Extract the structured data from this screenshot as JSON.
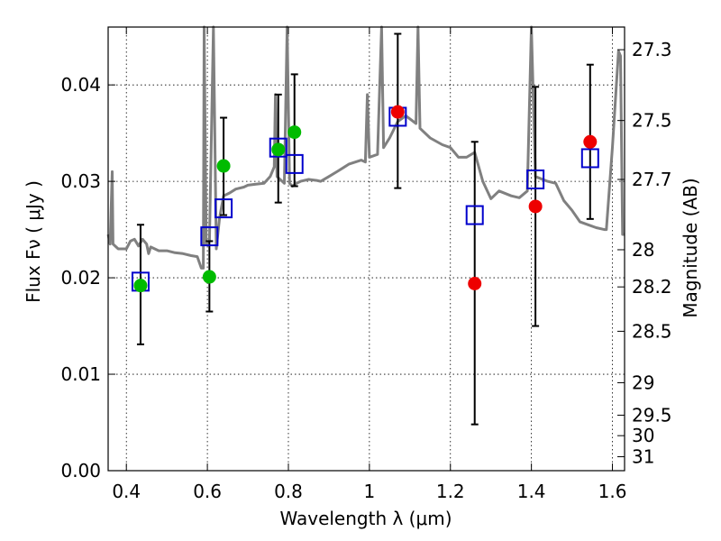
{
  "chart_data": {
    "type": "scatter",
    "xlabel": "Wavelength  λ (μm)",
    "ylabel": "Flux  Fν  ( μJy )",
    "y2label": "Magnitude (AB)",
    "xlim": [
      0.355,
      1.63
    ],
    "ylim": [
      0.0,
      0.046
    ],
    "x_ticks": [
      "0.4",
      "0.6",
      "0.8",
      "1",
      "1.2",
      "1.4",
      "1.6"
    ],
    "y_ticks": [
      "0.00",
      "0.01",
      "0.02",
      "0.03",
      "0.04"
    ],
    "magnitude_ticks": [
      "27.3",
      "27.5",
      "27.7",
      "28",
      "28.2",
      "28.5",
      "29",
      "29.5",
      "30",
      "31"
    ],
    "grid": true,
    "colors": {
      "model": "#808080",
      "squares": "#0000cc",
      "green": "#00bb00",
      "red": "#ee0000",
      "errorbars": "#000000"
    },
    "series": [
      {
        "marker": "square",
        "points": [
          {
            "x": 0.435,
            "y": 0.0196
          },
          {
            "x": 0.605,
            "y": 0.0243
          },
          {
            "x": 0.64,
            "y": 0.0272
          },
          {
            "x": 0.775,
            "y": 0.0335
          },
          {
            "x": 0.815,
            "y": 0.0318
          },
          {
            "x": 1.07,
            "y": 0.0367
          },
          {
            "x": 1.26,
            "y": 0.0265
          },
          {
            "x": 1.41,
            "y": 0.0302
          },
          {
            "x": 1.545,
            "y": 0.0324
          }
        ]
      },
      {
        "marker": "circle",
        "points": [
          {
            "x": 0.435,
            "y": 0.0192,
            "color": "green",
            "err": [
              0.0131,
              0.0255
            ]
          },
          {
            "x": 0.605,
            "y": 0.0201,
            "color": "green",
            "err": [
              0.0165,
              0.0238
            ]
          },
          {
            "x": 0.64,
            "y": 0.0316,
            "color": "green",
            "err": [
              0.0265,
              0.0366
            ]
          },
          {
            "x": 0.775,
            "y": 0.0333,
            "color": "green",
            "err": [
              0.0278,
              0.039
            ]
          },
          {
            "x": 0.815,
            "y": 0.0351,
            "color": "green",
            "err": [
              0.0295,
              0.0411
            ]
          },
          {
            "x": 1.07,
            "y": 0.0372,
            "color": "red",
            "err": [
              0.0293,
              0.0453
            ]
          },
          {
            "x": 1.26,
            "y": 0.0194,
            "color": "red",
            "err": [
              0.0048,
              0.0341
            ]
          },
          {
            "x": 1.41,
            "y": 0.0274,
            "color": "red",
            "err": [
              0.015,
              0.0398
            ]
          },
          {
            "x": 1.545,
            "y": 0.0341,
            "color": "red",
            "err": [
              0.0261,
              0.0421
            ]
          }
        ]
      },
      {
        "marker": "line",
        "points": [
          [
            0.355,
            0.0245
          ],
          [
            0.36,
            0.0235
          ],
          [
            0.365,
            0.031
          ],
          [
            0.367,
            0.0235
          ],
          [
            0.38,
            0.023
          ],
          [
            0.4,
            0.023
          ],
          [
            0.41,
            0.0238
          ],
          [
            0.42,
            0.024
          ],
          [
            0.43,
            0.0233
          ],
          [
            0.44,
            0.024
          ],
          [
            0.45,
            0.0235
          ],
          [
            0.455,
            0.0225
          ],
          [
            0.46,
            0.0232
          ],
          [
            0.48,
            0.0228
          ],
          [
            0.5,
            0.0228
          ],
          [
            0.52,
            0.0226
          ],
          [
            0.54,
            0.0225
          ],
          [
            0.56,
            0.0223
          ],
          [
            0.575,
            0.0222
          ],
          [
            0.585,
            0.021
          ],
          [
            0.59,
            0.021
          ],
          [
            0.592,
            0.046
          ],
          [
            0.597,
            0.0235
          ],
          [
            0.605,
            0.0238
          ],
          [
            0.615,
            0.046
          ],
          [
            0.622,
            0.023
          ],
          [
            0.63,
            0.0262
          ],
          [
            0.64,
            0.0285
          ],
          [
            0.655,
            0.0288
          ],
          [
            0.67,
            0.0292
          ],
          [
            0.69,
            0.0294
          ],
          [
            0.7,
            0.0296
          ],
          [
            0.72,
            0.0297
          ],
          [
            0.74,
            0.0298
          ],
          [
            0.755,
            0.0305
          ],
          [
            0.765,
            0.0315
          ],
          [
            0.768,
            0.039
          ],
          [
            0.772,
            0.0305
          ],
          [
            0.79,
            0.0298
          ],
          [
            0.797,
            0.046
          ],
          [
            0.803,
            0.0298
          ],
          [
            0.81,
            0.0295
          ],
          [
            0.82,
            0.0298
          ],
          [
            0.83,
            0.03
          ],
          [
            0.85,
            0.0302
          ],
          [
            0.87,
            0.0301
          ],
          [
            0.88,
            0.03
          ],
          [
            0.9,
            0.0305
          ],
          [
            0.92,
            0.031
          ],
          [
            0.95,
            0.0318
          ],
          [
            0.98,
            0.0322
          ],
          [
            0.99,
            0.032
          ],
          [
            0.995,
            0.039
          ],
          [
            1.0,
            0.0325
          ],
          [
            1.02,
            0.0328
          ],
          [
            1.03,
            0.046
          ],
          [
            1.035,
            0.0335
          ],
          [
            1.05,
            0.0345
          ],
          [
            1.07,
            0.0362
          ],
          [
            1.09,
            0.0368
          ],
          [
            1.115,
            0.036
          ],
          [
            1.12,
            0.046
          ],
          [
            1.125,
            0.0355
          ],
          [
            1.15,
            0.0345
          ],
          [
            1.18,
            0.0338
          ],
          [
            1.2,
            0.0335
          ],
          [
            1.22,
            0.0325
          ],
          [
            1.24,
            0.0325
          ],
          [
            1.26,
            0.033
          ],
          [
            1.28,
            0.03
          ],
          [
            1.3,
            0.0282
          ],
          [
            1.32,
            0.029
          ],
          [
            1.35,
            0.0285
          ],
          [
            1.37,
            0.0283
          ],
          [
            1.39,
            0.029
          ],
          [
            1.4,
            0.046
          ],
          [
            1.41,
            0.0305
          ],
          [
            1.44,
            0.03
          ],
          [
            1.46,
            0.0298
          ],
          [
            1.48,
            0.028
          ],
          [
            1.5,
            0.027
          ],
          [
            1.52,
            0.0258
          ],
          [
            1.54,
            0.0255
          ],
          [
            1.56,
            0.0252
          ],
          [
            1.58,
            0.025
          ],
          [
            1.585,
            0.025
          ],
          [
            1.6,
            0.0335
          ],
          [
            1.615,
            0.0435
          ],
          [
            1.62,
            0.043
          ],
          [
            1.625,
            0.0245
          ],
          [
            1.63,
            0.0245
          ]
        ]
      }
    ]
  }
}
